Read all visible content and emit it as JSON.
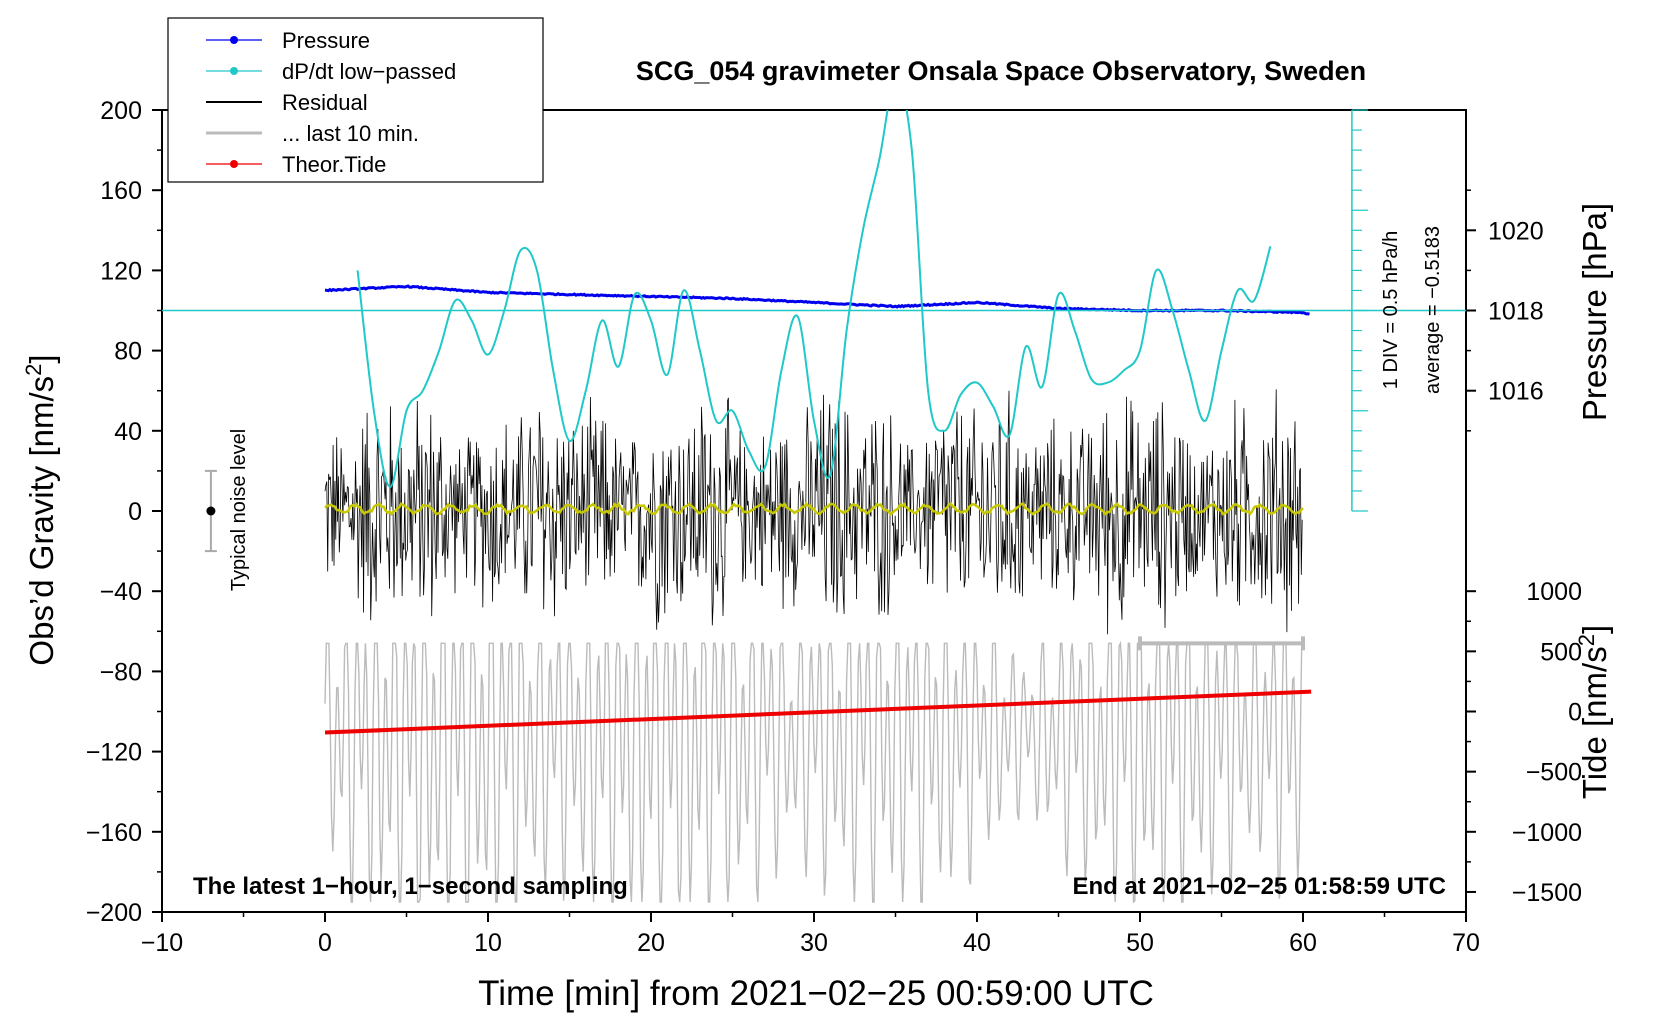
{
  "chart_data": {
    "type": "line",
    "title": "SCG_054 gravimeter Onsala Space Observatory, Sweden",
    "xlabel": "Time [min] from 2021−02−25 00:59:00 UTC",
    "ylabel_left": "Obs’d Gravity [nm/s",
    "ylabel_left_sup": "2",
    "ylabel_left_close": "]",
    "ylabel_pressure": "Pressure [hPa]",
    "ylabel_tide": "Tide [nm/s",
    "ylabel_tide_sup": "2",
    "ylabel_tide_close": "]",
    "xlim": [
      -10,
      70
    ],
    "ylim_gravity": [
      -200,
      200
    ],
    "x_ticks": [
      "−10",
      "0",
      "10",
      "20",
      "30",
      "40",
      "50",
      "60",
      "70"
    ],
    "y_ticks_gravity": [
      "200",
      "160",
      "120",
      "80",
      "40",
      "0",
      "−40",
      "−80",
      "−120",
      "−160",
      "−200"
    ],
    "pressure_ticks": [
      "1020",
      "1018",
      "1016"
    ],
    "pressure_tick_values": [
      1020,
      1018,
      1016
    ],
    "pressure_axis": {
      "ref_hpa": 1018,
      "ref_gravity": 100,
      "gravity_per_hpa": 20
    },
    "tide_ticks": [
      "1000",
      "500",
      "0",
      "−500",
      "−1000",
      "−1500"
    ],
    "tide_tick_values": [
      1000,
      500,
      0,
      -500,
      -1000,
      -1500
    ],
    "tide_axis": {
      "ref_nms2": 0,
      "ref_gravity": -100,
      "gravity_per_nms2": 0.06
    },
    "legend": {
      "position": "top-left",
      "entries": [
        {
          "label": "Pressure",
          "color": "#0000ee",
          "marker": true
        },
        {
          "label": "dP/dt low−passed",
          "color": "#20c8c8",
          "marker": true
        },
        {
          "label": "Residual",
          "color": "#000000",
          "marker": false
        },
        {
          "label": "... last 10 min.",
          "color": "#bbbbbb",
          "marker": false
        },
        {
          "label": "Theor.Tide",
          "color": "#ee0000",
          "marker": true
        }
      ]
    },
    "noise_label": "Typical noise level",
    "noise_marker": {
      "x": -7,
      "center": 0,
      "halfwidth": 20
    },
    "dpdt_scale_label": "1 DIV = 0.5 hPa/h",
    "dpdt_average_label": "average = −0.5183",
    "dpdt_axis": {
      "x": 63,
      "baseline": 100,
      "bottom": 0,
      "top": 200,
      "tick_step": 10
    },
    "annotation_left": "The latest 1−hour, 1−second sampling",
    "annotation_right": "End at 2021−02−25 01:58:59 UTC",
    "last10_range": {
      "x_start": 50,
      "x_end": 60,
      "y": -66
    },
    "series": [
      {
        "name": "Pressure",
        "color": "#0000ee",
        "unit": "hPa",
        "x": [
          0,
          5,
          10,
          15,
          20,
          25,
          30,
          35,
          40,
          45,
          50,
          55,
          60,
          60.5
        ],
        "values": [
          1018.5,
          1018.6,
          1018.45,
          1018.4,
          1018.35,
          1018.3,
          1018.2,
          1018.1,
          1018.2,
          1018.05,
          1018.0,
          1018.0,
          1017.95,
          1017.9
        ]
      },
      {
        "name": "dP/dt low−passed",
        "color": "#20c8c8",
        "unit": "gravity-scale",
        "x": [
          2,
          3,
          4,
          5,
          6,
          7,
          8,
          9,
          10,
          11,
          12,
          13,
          14,
          15,
          16,
          17,
          18,
          19,
          20,
          21,
          22,
          23,
          24,
          25,
          26,
          27,
          28,
          29,
          30,
          31,
          32,
          33,
          34,
          35,
          36,
          37,
          38,
          39,
          40,
          41,
          42,
          43,
          44,
          45,
          46,
          47,
          48,
          49,
          50,
          51,
          52,
          53,
          54,
          55,
          56,
          57,
          58
        ],
        "values": [
          120,
          50,
          12,
          50,
          60,
          80,
          105,
          95,
          78,
          100,
          130,
          120,
          70,
          35,
          60,
          95,
          72,
          108,
          95,
          68,
          110,
          80,
          45,
          50,
          30,
          22,
          70,
          97,
          45,
          18,
          90,
          140,
          175,
          215,
          180,
          60,
          40,
          58,
          64,
          52,
          38,
          82,
          62,
          108,
          90,
          66,
          64,
          70,
          80,
          120,
          100,
          70,
          45,
          80,
          110,
          105,
          132
        ]
      },
      {
        "name": "Theor.Tide",
        "color": "#ee0000",
        "unit": "nm/s2",
        "x": [
          0,
          60.5
        ],
        "values": [
          -175,
          165
        ]
      }
    ]
  }
}
